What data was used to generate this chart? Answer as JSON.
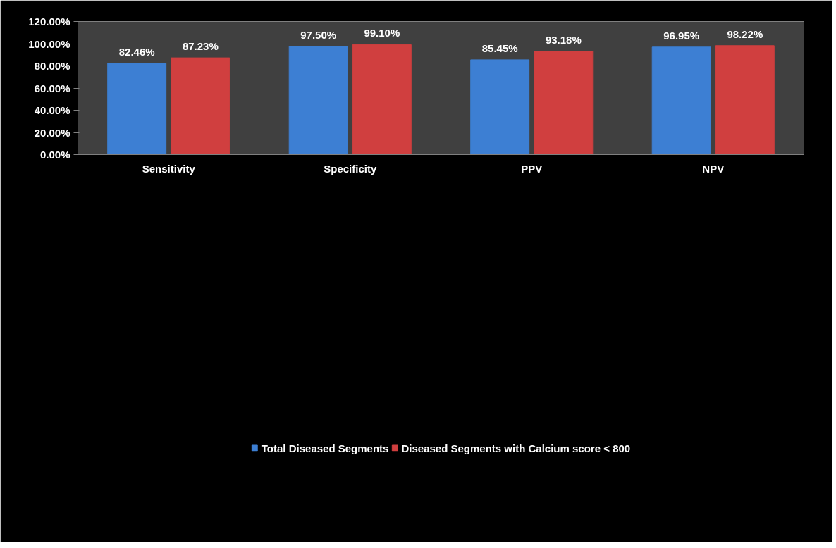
{
  "chart_data": {
    "type": "bar",
    "categories": [
      "Sensitivity",
      "Specificity",
      "PPV",
      "NPV"
    ],
    "series": [
      {
        "name": "Total Diseased Segments",
        "color": "#3d7fd3",
        "values": [
          82.46,
          97.5,
          85.45,
          96.95
        ],
        "value_labels": [
          "82.46%",
          "97.50%",
          "85.45%",
          "96.95%"
        ]
      },
      {
        "name": "Diseased Segments with Calcium score < 800",
        "color": "#d03f3f",
        "values": [
          87.23,
          99.1,
          93.18,
          98.22
        ],
        "value_labels": [
          "87.23%",
          "99.10%",
          "93.18%",
          "98.22%"
        ]
      }
    ],
    "ylim": [
      0,
      120
    ],
    "yticks": [
      {
        "value": 0,
        "label": "0.00%"
      },
      {
        "value": 20,
        "label": "20.00%"
      },
      {
        "value": 40,
        "label": "40.00%"
      },
      {
        "value": 60,
        "label": "60.00%"
      },
      {
        "value": 80,
        "label": "80.00%"
      },
      {
        "value": 100,
        "label": "100.00%"
      },
      {
        "value": 120,
        "label": "120.00%"
      }
    ],
    "grid": false,
    "legend": "bottom"
  }
}
